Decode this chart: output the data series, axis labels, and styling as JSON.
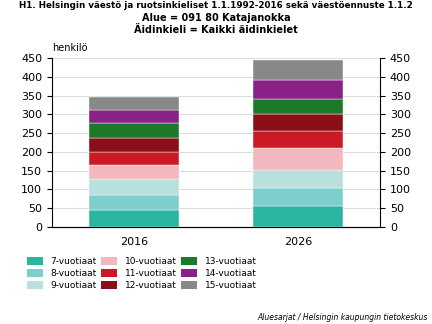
{
  "title_line1": "H1. Helsingin väestö ja ruotsinkieliset 1.1.1992-2016 sekä väestöennuste 1.1.2",
  "title_line2": "Alue = 091 80 Katajanokka",
  "title_line3": "Äidinkieli = Kaikki äidinkielet",
  "ylabel": "henkilö",
  "credit": "Aluesarjat / Helsingin kaupungin tietokeskus",
  "years": [
    "2016",
    "2026"
  ],
  "categories": [
    "7-vuotiaat",
    "8-vuotiaat",
    "9-vuotiaat",
    "10-vuotiaat",
    "11-vuotiaat",
    "12-vuotiaat",
    "13-vuotiaat",
    "14-vuotiaat",
    "15-vuotiaat"
  ],
  "colors": [
    "#2ab5a0",
    "#7ecece",
    "#b8e0dc",
    "#f2b8be",
    "#cc1a25",
    "#8b0f17",
    "#1a7a28",
    "#882288",
    "#888888"
  ],
  "values_2016": [
    44,
    42,
    42,
    38,
    35,
    37,
    38,
    35,
    37
  ],
  "values_2026": [
    55,
    48,
    50,
    57,
    45,
    45,
    42,
    50,
    53
  ],
  "ylim": [
    0,
    450
  ],
  "yticks": [
    0,
    50,
    100,
    150,
    200,
    250,
    300,
    350,
    400,
    450
  ],
  "background_color": "#ffffff",
  "grid_color": "#cccccc"
}
